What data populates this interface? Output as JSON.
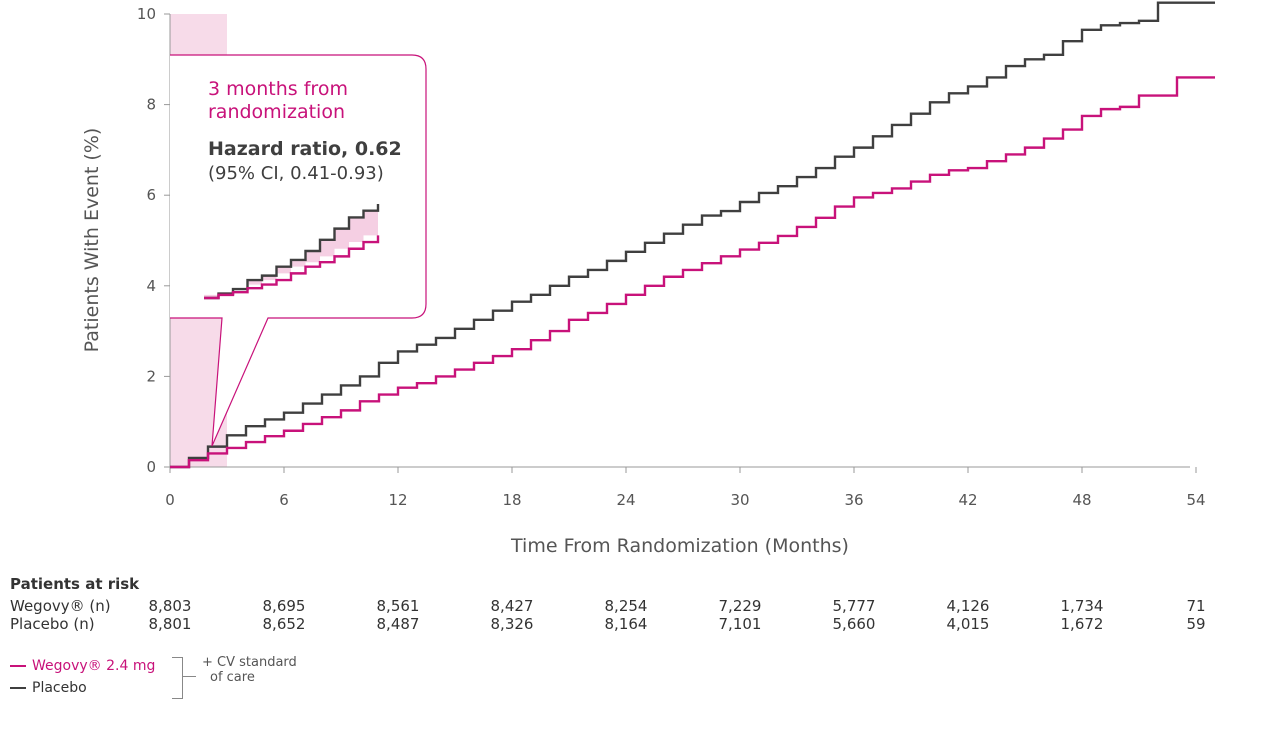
{
  "colors": {
    "wegovy": "#c8127a",
    "placebo": "#3f3f3f",
    "shade": "#f7dbe9",
    "shade_fill": "#f5cfe3",
    "axis": "#999999"
  },
  "chart_data": {
    "type": "line",
    "xlabel": "Time From Randomization (Months)",
    "ylabel": "Patients With Event (%)",
    "xlim": [
      0,
      55
    ],
    "ylim": [
      0,
      10
    ],
    "xticks": [
      0,
      6,
      12,
      18,
      24,
      30,
      36,
      42,
      48,
      54
    ],
    "yticks": [
      0,
      2,
      4,
      6,
      8,
      10
    ],
    "grid": false,
    "shaded_region": {
      "x": [
        0,
        3
      ]
    },
    "series": [
      {
        "name": "Placebo",
        "color_key": "placebo",
        "x": [
          0,
          1,
          2,
          3,
          4,
          5,
          6,
          7,
          8,
          9,
          10,
          11,
          12,
          13,
          14,
          15,
          16,
          17,
          18,
          19,
          20,
          21,
          22,
          23,
          24,
          25,
          26,
          27,
          28,
          29,
          30,
          31,
          32,
          33,
          34,
          35,
          36,
          37,
          38,
          39,
          40,
          41,
          42,
          43,
          44,
          45,
          46,
          47,
          48,
          49,
          50,
          51,
          52,
          53,
          55
        ],
        "y": [
          0,
          0.2,
          0.45,
          0.7,
          0.9,
          1.05,
          1.2,
          1.4,
          1.6,
          1.8,
          2.0,
          2.3,
          2.55,
          2.7,
          2.85,
          3.05,
          3.25,
          3.45,
          3.65,
          3.8,
          4.0,
          4.2,
          4.35,
          4.55,
          4.75,
          4.95,
          5.15,
          5.35,
          5.55,
          5.65,
          5.85,
          6.05,
          6.2,
          6.4,
          6.6,
          6.85,
          7.05,
          7.3,
          7.55,
          7.8,
          8.05,
          8.25,
          8.4,
          8.6,
          8.85,
          9.0,
          9.1,
          9.4,
          9.65,
          9.75,
          9.8,
          9.85,
          10.25,
          10.25,
          10.25
        ]
      },
      {
        "name": "Wegovy® 2.4 mg",
        "color_key": "wegovy",
        "x": [
          0,
          1,
          2,
          3,
          4,
          5,
          6,
          7,
          8,
          9,
          10,
          11,
          12,
          13,
          14,
          15,
          16,
          17,
          18,
          19,
          20,
          21,
          22,
          23,
          24,
          25,
          26,
          27,
          28,
          29,
          30,
          31,
          32,
          33,
          34,
          35,
          36,
          37,
          38,
          39,
          40,
          41,
          42,
          43,
          44,
          45,
          46,
          47,
          48,
          49,
          50,
          51,
          52,
          53,
          55
        ],
        "y": [
          0,
          0.15,
          0.3,
          0.42,
          0.55,
          0.68,
          0.8,
          0.95,
          1.1,
          1.25,
          1.45,
          1.6,
          1.75,
          1.85,
          2.0,
          2.15,
          2.3,
          2.45,
          2.6,
          2.8,
          3.0,
          3.25,
          3.4,
          3.6,
          3.8,
          4.0,
          4.2,
          4.35,
          4.5,
          4.65,
          4.8,
          4.95,
          5.1,
          5.3,
          5.5,
          5.75,
          5.95,
          6.05,
          6.15,
          6.3,
          6.45,
          6.55,
          6.6,
          6.75,
          6.9,
          7.05,
          7.25,
          7.45,
          7.75,
          7.9,
          7.95,
          8.2,
          8.2,
          8.6,
          8.6
        ]
      }
    ],
    "callout": {
      "title_lines": [
        "3 months from",
        "randomization"
      ],
      "hazard_ratio": "Hazard ratio, 0.62",
      "ci": "(95% CI, 0.41-0.93)",
      "inset_placebo": [
        3.75,
        3.85,
        3.95,
        4.15,
        4.25,
        4.45,
        4.6,
        4.8,
        5.05,
        5.3,
        5.55,
        5.7,
        5.85
      ],
      "inset_wegovy": [
        3.75,
        3.82,
        3.88,
        3.97,
        4.05,
        4.15,
        4.3,
        4.45,
        4.55,
        4.68,
        4.85,
        5.0,
        5.15
      ]
    }
  },
  "risk_table": {
    "title": "Patients at risk",
    "rows": [
      {
        "label": "Wegovy® (n)",
        "values": [
          "8,803",
          "8,695",
          "8,561",
          "8,427",
          "8,254",
          "7,229",
          "5,777",
          "4,126",
          "1,734",
          "71"
        ]
      },
      {
        "label": "Placebo (n)",
        "values": [
          "8,801",
          "8,652",
          "8,487",
          "8,326",
          "8,164",
          "7,101",
          "5,660",
          "4,015",
          "1,672",
          "59"
        ]
      }
    ]
  },
  "legend": {
    "items": [
      {
        "label": "Wegovy® 2.4 mg",
        "color_key": "wegovy"
      },
      {
        "label": "Placebo",
        "color_key": "placebo"
      }
    ],
    "note_lines": [
      "+ CV standard",
      "of care"
    ]
  }
}
